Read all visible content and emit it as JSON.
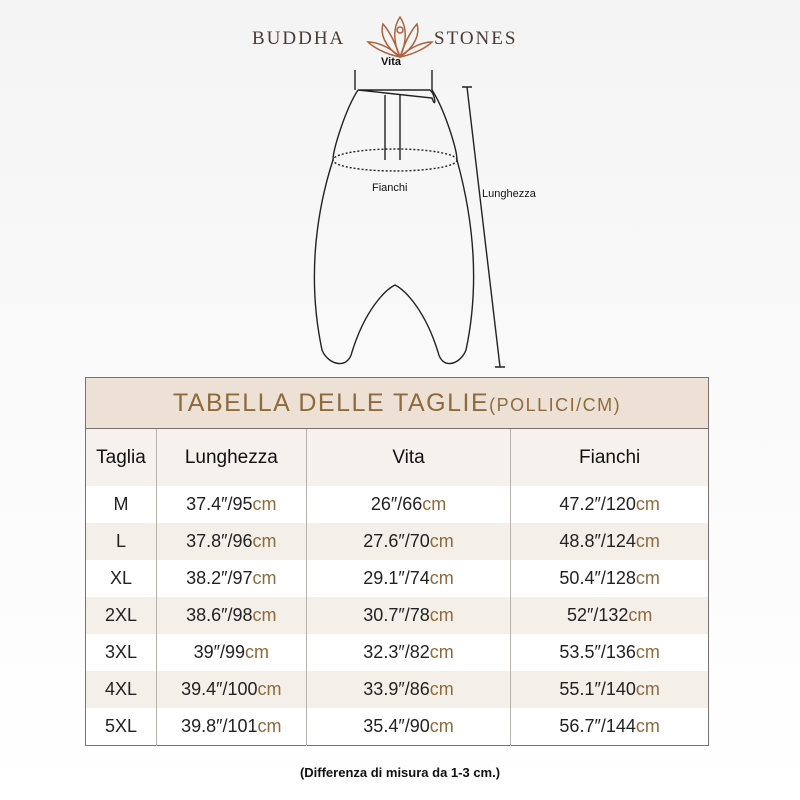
{
  "brand": {
    "left": "BUDDHA",
    "right": "STONES"
  },
  "diagram": {
    "waist": "Vita",
    "hips": "Fianchi",
    "length": "Lunghezza"
  },
  "table": {
    "title": "TABELLA DELLE TAGLIE",
    "title_unit": "(POLLICI/CM)",
    "headers": [
      "Taglia",
      "Lunghezza",
      "Vita",
      "Fianchi"
    ],
    "rows": [
      [
        "M",
        "37.4″/95",
        "26″/66",
        "47.2″/120"
      ],
      [
        "L",
        "37.8″/96",
        "27.6″/70",
        "48.8″/124"
      ],
      [
        "XL",
        "38.2″/97",
        "29.1″/74",
        "50.4″/128"
      ],
      [
        "2XL",
        "38.6″/98",
        "30.7″/78",
        "52″/132"
      ],
      [
        "3XL",
        "39″/99",
        "32.3″/82",
        "53.5″/136"
      ],
      [
        "4XL",
        "39.4″/100",
        "33.9″/86",
        "55.1″/140"
      ],
      [
        "5XL",
        "39.8″/101",
        "35.4″/90",
        "56.7″/144"
      ]
    ],
    "unit": "cm"
  },
  "note": "(Differenza di misura da 1-3 cm.)",
  "colors": {
    "accent": "#8e6a3c",
    "header_bg": "#ede1d6"
  }
}
